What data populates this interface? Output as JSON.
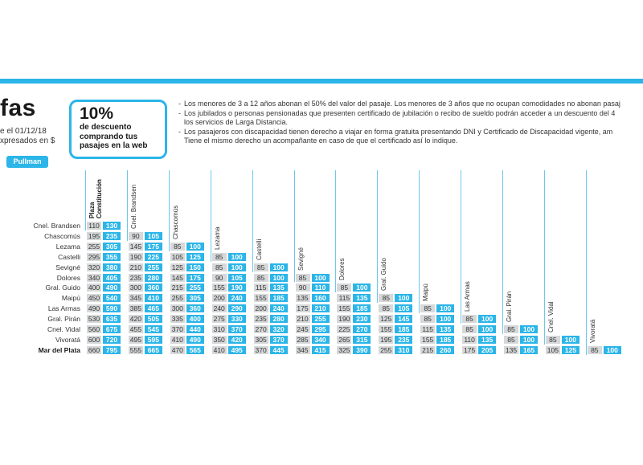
{
  "header": {
    "title": "fas",
    "subtitle_line1": "e el 01/12/18",
    "subtitle_line2": "xpresados en $",
    "service_badge": "Pullman",
    "accent_color": "#2bb5e8"
  },
  "promo": {
    "percent": "10%",
    "line1": "de descuento",
    "line2": "comprando tus",
    "line3": "pasajes en la web"
  },
  "notes": [
    "Los menores de 3 a 12 años abonan el 50% del valor del pasaje. Los menores de 3 años que no ocupan comodidades no abonan pasaj",
    "Los jubilados o personas pensionadas que presenten certificado de jubilación o recibo de sueldo podrán acceder a un descuento del 4",
    "los servicios de Larga Distancia.",
    "Los pasajeros con discapacidad tienen derecho a viajar en forma gratuita presentando DNI y Certificado de Discapacidad vigente, am",
    "Tiene el mismo derecho un acompañante en caso de que el certificado así lo indique."
  ],
  "table": {
    "columns": [
      "Plaza Constitución",
      "Cnel. Brandsen",
      "Chascomús",
      "Lezama",
      "Castelli",
      "Sevigné",
      "Dolores",
      "Gral. Guido",
      "Maipú",
      "Las Armas",
      "Gral. Pirán",
      "Cnel. Vidal",
      "Vivoratá"
    ],
    "rows": [
      {
        "name": "Cnel. Brandsen",
        "cells": [
          [
            "110",
            "130"
          ]
        ]
      },
      {
        "name": "Chascomús",
        "cells": [
          [
            "195",
            "235"
          ],
          [
            "90",
            "105"
          ]
        ]
      },
      {
        "name": "Lezama",
        "cells": [
          [
            "255",
            "305"
          ],
          [
            "145",
            "175"
          ],
          [
            "85",
            "100"
          ]
        ]
      },
      {
        "name": "Castelli",
        "cells": [
          [
            "295",
            "355"
          ],
          [
            "190",
            "225"
          ],
          [
            "105",
            "125"
          ],
          [
            "85",
            "100"
          ]
        ]
      },
      {
        "name": "Sevigné",
        "cells": [
          [
            "320",
            "380"
          ],
          [
            "210",
            "255"
          ],
          [
            "125",
            "150"
          ],
          [
            "85",
            "100"
          ],
          [
            "85",
            "100"
          ]
        ]
      },
      {
        "name": "Dolores",
        "cells": [
          [
            "340",
            "405"
          ],
          [
            "235",
            "280"
          ],
          [
            "145",
            "175"
          ],
          [
            "90",
            "105"
          ],
          [
            "85",
            "100"
          ],
          [
            "85",
            "100"
          ]
        ]
      },
      {
        "name": "Gral. Guido",
        "cells": [
          [
            "400",
            "490"
          ],
          [
            "300",
            "360"
          ],
          [
            "215",
            "255"
          ],
          [
            "155",
            "190"
          ],
          [
            "115",
            "135"
          ],
          [
            "90",
            "110"
          ],
          [
            "85",
            "100"
          ]
        ]
      },
      {
        "name": "Maipú",
        "cells": [
          [
            "450",
            "540"
          ],
          [
            "345",
            "410"
          ],
          [
            "255",
            "305"
          ],
          [
            "200",
            "240"
          ],
          [
            "155",
            "185"
          ],
          [
            "135",
            "160"
          ],
          [
            "115",
            "135"
          ],
          [
            "85",
            "100"
          ]
        ]
      },
      {
        "name": "Las Armas",
        "cells": [
          [
            "490",
            "590"
          ],
          [
            "385",
            "465"
          ],
          [
            "300",
            "360"
          ],
          [
            "240",
            "290"
          ],
          [
            "200",
            "240"
          ],
          [
            "175",
            "210"
          ],
          [
            "155",
            "185"
          ],
          [
            "85",
            "105"
          ],
          [
            "85",
            "100"
          ]
        ]
      },
      {
        "name": "Gral. Pirán",
        "cells": [
          [
            "530",
            "635"
          ],
          [
            "420",
            "505"
          ],
          [
            "335",
            "400"
          ],
          [
            "275",
            "330"
          ],
          [
            "235",
            "280"
          ],
          [
            "210",
            "255"
          ],
          [
            "190",
            "230"
          ],
          [
            "125",
            "145"
          ],
          [
            "85",
            "100"
          ],
          [
            "85",
            "100"
          ]
        ]
      },
      {
        "name": "Cnel. Vidal",
        "cells": [
          [
            "560",
            "675"
          ],
          [
            "455",
            "545"
          ],
          [
            "370",
            "440"
          ],
          [
            "310",
            "370"
          ],
          [
            "270",
            "320"
          ],
          [
            "245",
            "295"
          ],
          [
            "225",
            "270"
          ],
          [
            "155",
            "185"
          ],
          [
            "115",
            "135"
          ],
          [
            "85",
            "100"
          ],
          [
            "85",
            "100"
          ]
        ]
      },
      {
        "name": "Vivoratá",
        "cells": [
          [
            "600",
            "720"
          ],
          [
            "495",
            "595"
          ],
          [
            "410",
            "490"
          ],
          [
            "350",
            "420"
          ],
          [
            "305",
            "370"
          ],
          [
            "285",
            "340"
          ],
          [
            "265",
            "315"
          ],
          [
            "195",
            "235"
          ],
          [
            "155",
            "185"
          ],
          [
            "110",
            "135"
          ],
          [
            "85",
            "100"
          ],
          [
            "85",
            "100"
          ]
        ]
      },
      {
        "name": "Mar del Plata",
        "cells": [
          [
            "660",
            "795"
          ],
          [
            "555",
            "665"
          ],
          [
            "470",
            "565"
          ],
          [
            "410",
            "495"
          ],
          [
            "370",
            "445"
          ],
          [
            "345",
            "415"
          ],
          [
            "325",
            "390"
          ],
          [
            "255",
            "310"
          ],
          [
            "215",
            "260"
          ],
          [
            "175",
            "205"
          ],
          [
            "135",
            "165"
          ],
          [
            "105",
            "125"
          ],
          [
            "85",
            "100"
          ]
        ],
        "bold": true
      }
    ]
  }
}
